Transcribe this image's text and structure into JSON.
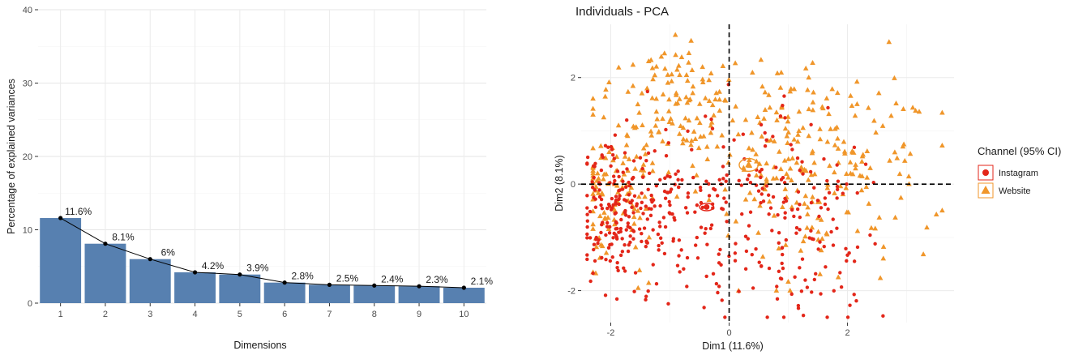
{
  "chart_data": [
    {
      "type": "bar",
      "title": "",
      "xlabel": "Dimensions",
      "ylabel": "Percentage of explained variances",
      "ylim": [
        0,
        40
      ],
      "yticks": [
        0,
        10,
        20,
        30,
        40
      ],
      "categories": [
        "1",
        "2",
        "3",
        "4",
        "5",
        "6",
        "7",
        "8",
        "9",
        "10"
      ],
      "values": [
        11.6,
        8.1,
        6.0,
        4.2,
        3.9,
        2.8,
        2.5,
        2.4,
        2.3,
        2.1
      ],
      "value_labels": [
        "11.6%",
        "8.1%",
        "6%",
        "4.2%",
        "3.9%",
        "2.8%",
        "2.5%",
        "2.4%",
        "2.3%",
        "2.1%"
      ],
      "overlay_line": true,
      "colors": {
        "bar": "#5780b0",
        "line": "#000000"
      }
    },
    {
      "type": "scatter",
      "title": "Individuals - PCA",
      "xlabel": "Dim1 (11.6%)",
      "ylabel": "Dim2 (8.1%)",
      "xlim": [
        -2.5,
        3.8
      ],
      "ylim": [
        -2.6,
        3.0
      ],
      "xticks": [
        -2,
        0,
        2
      ],
      "yticks": [
        -2,
        0,
        2
      ],
      "legend": {
        "title": "Channel (95% CI)",
        "position": "right",
        "items": [
          {
            "label": "Instagram",
            "shape": "circle",
            "color": "#e32619"
          },
          {
            "label": "Website",
            "shape": "triangle",
            "color": "#f0962a"
          }
        ]
      },
      "centroids": [
        {
          "group": "Instagram",
          "x": -0.38,
          "y": -0.43,
          "ci_rx": 0.12,
          "ci_ry": 0.07
        },
        {
          "group": "Website",
          "x": 0.33,
          "y": 0.36,
          "ci_rx": 0.16,
          "ci_ry": 0.12
        }
      ],
      "point_count_per_group": 460,
      "colors": {
        "Instagram": "#e32619",
        "Website": "#f0962a",
        "grid": "#ebebeb"
      }
    }
  ]
}
